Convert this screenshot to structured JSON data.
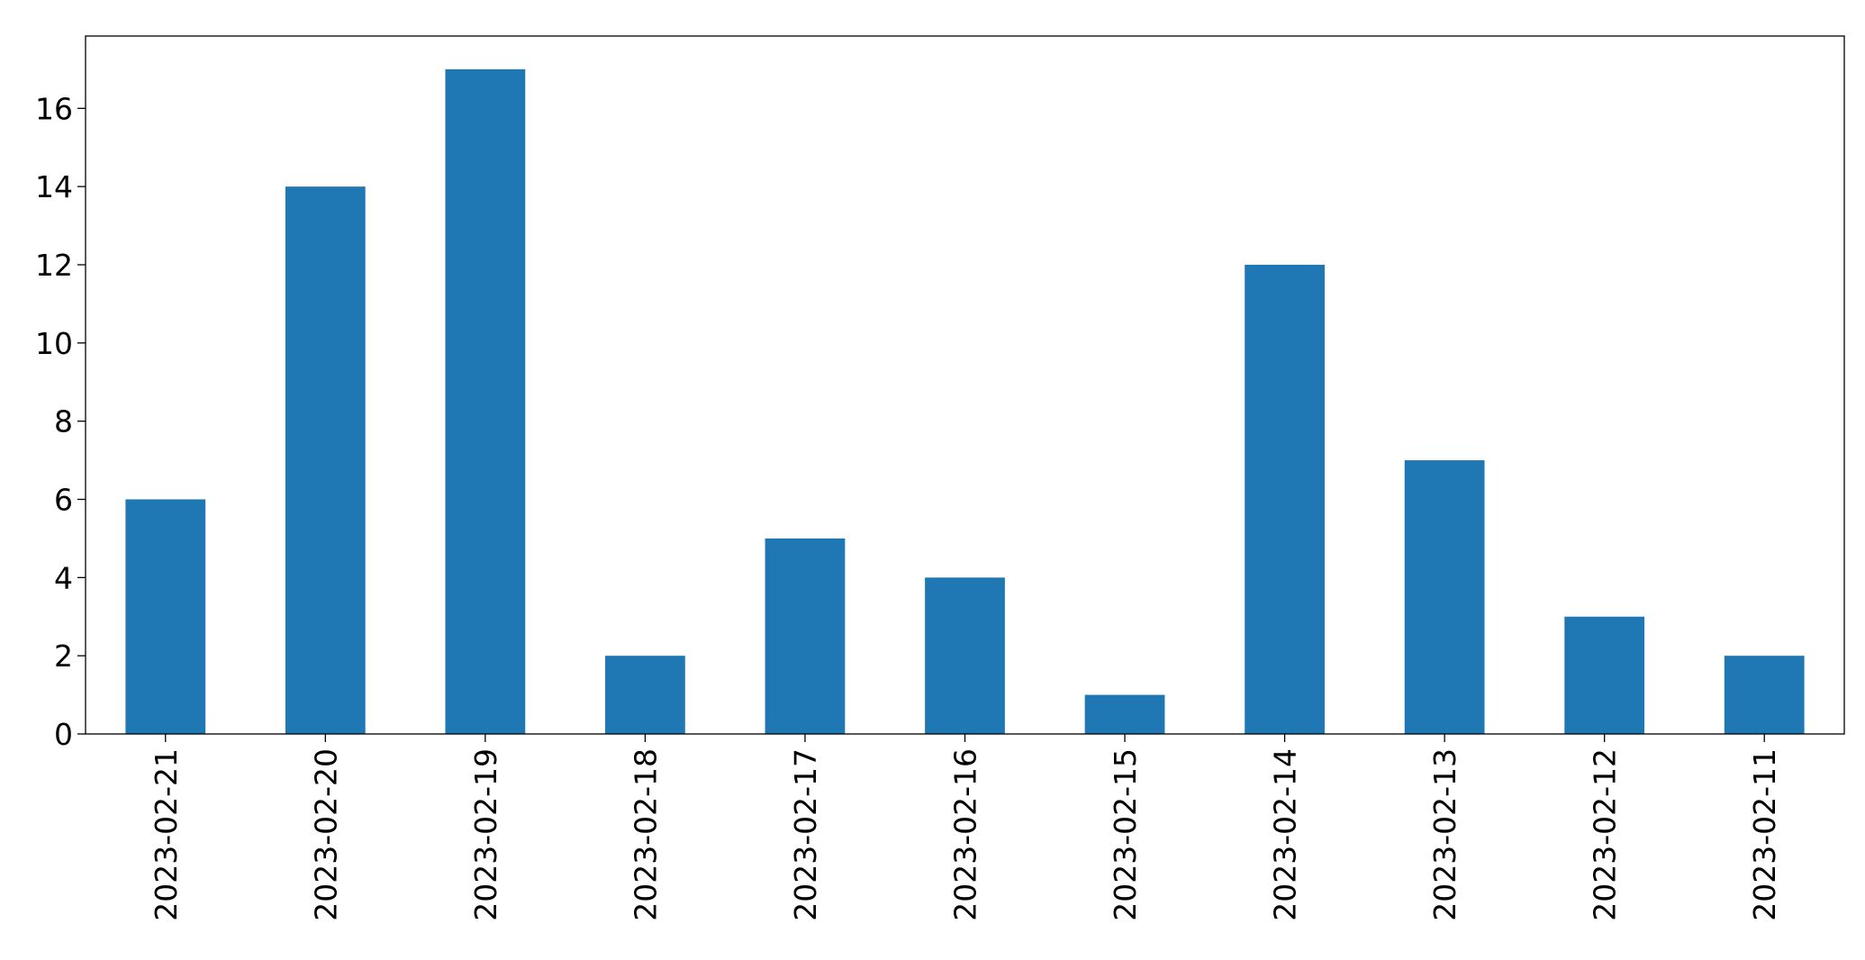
{
  "chart_data": {
    "type": "bar",
    "categories": [
      "2023-02-21",
      "2023-02-20",
      "2023-02-19",
      "2023-02-18",
      "2023-02-17",
      "2023-02-16",
      "2023-02-15",
      "2023-02-14",
      "2023-02-13",
      "2023-02-12",
      "2023-02-11"
    ],
    "values": [
      6,
      14,
      17,
      2,
      5,
      4,
      1,
      12,
      7,
      3,
      2
    ],
    "title": "",
    "xlabel": "",
    "ylabel": "",
    "ylim": [
      0,
      17.85
    ],
    "yticks": [
      0,
      2,
      4,
      6,
      8,
      10,
      12,
      14,
      16
    ],
    "grid": false,
    "legend": "none",
    "bar_color": "#1f77b4",
    "x_tick_rotation": "vertical"
  }
}
